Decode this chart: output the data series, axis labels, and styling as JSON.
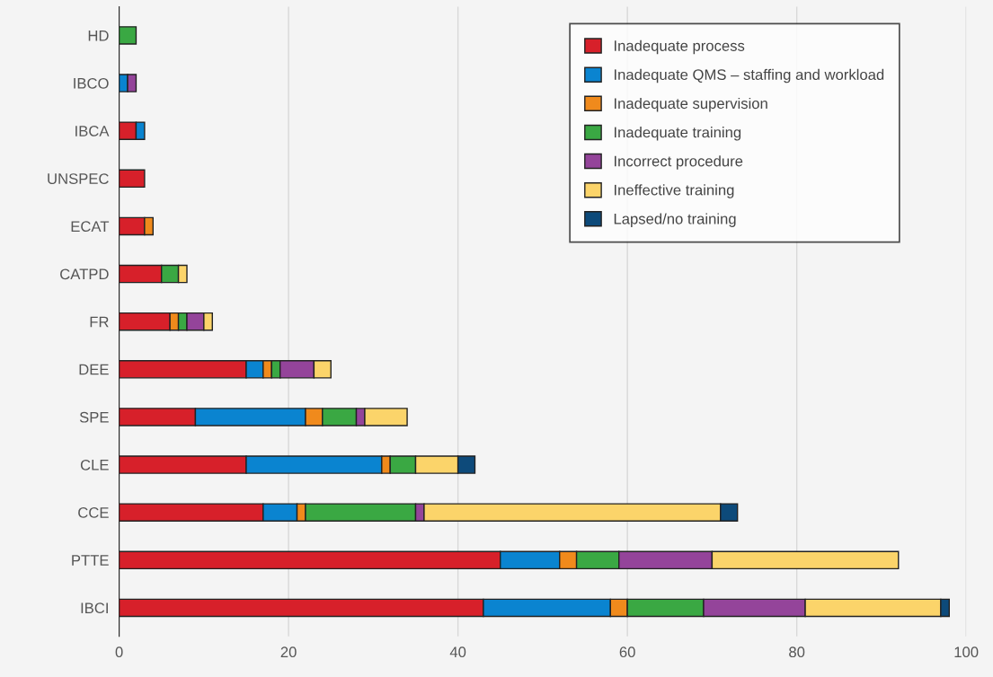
{
  "chart_data": {
    "type": "bar",
    "orientation": "horizontal",
    "stacked": true,
    "categories": [
      "HD",
      "IBCO",
      "IBCA",
      "UNSPEC",
      "ECAT",
      "CATPD",
      "FR",
      "DEE",
      "SPE",
      "CLE",
      "CCE",
      "PTTE",
      "IBCI"
    ],
    "series": [
      {
        "name": "Inadequate process",
        "color": "#d7202a",
        "values": [
          null,
          null,
          2,
          3,
          3,
          5,
          6,
          15,
          9,
          15,
          17,
          45,
          43
        ]
      },
      {
        "name": "Inadequate QMS – staffing and workload",
        "color": "#0a84d0",
        "values": [
          null,
          1,
          1,
          null,
          null,
          null,
          null,
          2,
          13,
          16,
          4,
          7,
          15
        ]
      },
      {
        "name": "Inadequate supervision",
        "color": "#f08a1c",
        "values": [
          null,
          null,
          null,
          null,
          1,
          null,
          1,
          1,
          2,
          1,
          1,
          2,
          2
        ]
      },
      {
        "name": "Inadequate training",
        "color": "#3aa843",
        "values": [
          2,
          null,
          null,
          null,
          null,
          2,
          1,
          1,
          4,
          3,
          13,
          5,
          9
        ]
      },
      {
        "name": "Incorrect procedure",
        "color": "#94449a",
        "values": [
          null,
          1,
          null,
          null,
          null,
          null,
          2,
          4,
          1,
          null,
          1,
          11,
          12
        ]
      },
      {
        "name": "Ineffective training",
        "color": "#fbd46a",
        "values": [
          null,
          null,
          null,
          null,
          null,
          1,
          1,
          2,
          5,
          5,
          35,
          22,
          16
        ]
      },
      {
        "name": "Lapsed/no training",
        "color": "#0d4a7a",
        "values": [
          null,
          null,
          null,
          null,
          null,
          null,
          null,
          null,
          null,
          2,
          2,
          null,
          1
        ]
      }
    ],
    "xlim": [
      0,
      100
    ],
    "xticks": [
      0,
      20,
      40,
      60,
      80,
      100
    ],
    "grid": "x",
    "legend": "top right"
  }
}
